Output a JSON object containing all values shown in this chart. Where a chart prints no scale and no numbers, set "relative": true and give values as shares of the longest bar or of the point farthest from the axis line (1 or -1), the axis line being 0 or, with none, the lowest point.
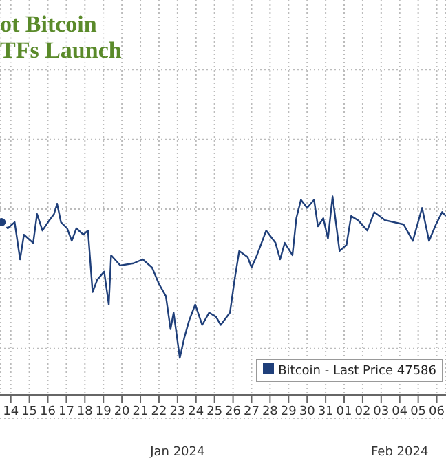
{
  "chart_data": {
    "type": "line",
    "title": "ot Bitcoin\nTFs Launch",
    "relative": true,
    "grid": true,
    "legend": "bottom right",
    "marker": "none",
    "line_style": "solid",
    "annotations": [
      "Jan 2024",
      "Feb 2024"
    ],
    "xlim": [
      "2024-01-13T10:00",
      "2024-02-06T12:00"
    ],
    "xticks": [
      {
        "value": "2024-01-14",
        "label": "14"
      },
      {
        "value": "2024-01-15",
        "label": "15"
      },
      {
        "value": "2024-01-16",
        "label": "16"
      },
      {
        "value": "2024-01-17",
        "label": "17"
      },
      {
        "value": "2024-01-18",
        "label": "18"
      },
      {
        "value": "2024-01-19",
        "label": "19"
      },
      {
        "value": "2024-01-20",
        "label": "20"
      },
      {
        "value": "2024-01-21",
        "label": "21"
      },
      {
        "value": "2024-01-22",
        "label": "22"
      },
      {
        "value": "2024-01-23",
        "label": "23"
      },
      {
        "value": "2024-01-24",
        "label": "24"
      },
      {
        "value": "2024-01-25",
        "label": "25"
      },
      {
        "value": "2024-01-26",
        "label": "26"
      },
      {
        "value": "2024-01-27",
        "label": "27"
      },
      {
        "value": "2024-01-28",
        "label": "28"
      },
      {
        "value": "2024-01-29",
        "label": "29"
      },
      {
        "value": "2024-01-30",
        "label": "30"
      },
      {
        "value": "2024-01-31",
        "label": "31"
      },
      {
        "value": "2024-02-01",
        "label": "01"
      },
      {
        "value": "2024-02-02",
        "label": "02"
      },
      {
        "value": "2024-02-03",
        "label": "03"
      },
      {
        "value": "2024-02-04",
        "label": "04"
      },
      {
        "value": "2024-02-05",
        "label": "05"
      },
      {
        "value": "2024-02-06",
        "label": "06"
      }
    ],
    "x": [
      "2024-01-13T12:00",
      "2024-01-13T20:00",
      "2024-01-14T05:00",
      "2024-01-14T12:00",
      "2024-01-14T17:00",
      "2024-01-15T05:00",
      "2024-01-15T10:00",
      "2024-01-15T17:00",
      "2024-01-16T02:00",
      "2024-01-16T08:00",
      "2024-01-16T12:00",
      "2024-01-16T17:00",
      "2024-01-17T01:00",
      "2024-01-17T07:00",
      "2024-01-17T13:00",
      "2024-01-17T22:00",
      "2024-01-18T04:00",
      "2024-01-18T10:00",
      "2024-01-18T16:00",
      "2024-01-19T01:00",
      "2024-01-19T07:00",
      "2024-01-19T10:00",
      "2024-01-19T22:00",
      "2024-01-20T15:00",
      "2024-01-21T03:00",
      "2024-01-21T15:00",
      "2024-01-22T00:00",
      "2024-01-22T09:00",
      "2024-01-22T15:00",
      "2024-01-22T19:00",
      "2024-01-23T03:00",
      "2024-01-23T09:00",
      "2024-01-23T15:00",
      "2024-01-23T23:00",
      "2024-01-24T08:00",
      "2024-01-24T17:00",
      "2024-01-25T02:00",
      "2024-01-25T08:00",
      "2024-01-25T20:00",
      "2024-01-26T02:00",
      "2024-01-26T08:00",
      "2024-01-26T19:00",
      "2024-01-27T00:00",
      "2024-01-27T07:00",
      "2024-01-27T19:00",
      "2024-01-28T07:00",
      "2024-01-28T13:00",
      "2024-01-28T19:00",
      "2024-01-29T05:00",
      "2024-01-29T10:00",
      "2024-01-29T16:00",
      "2024-01-30T00:00",
      "2024-01-30T09:00",
      "2024-01-30T14:00",
      "2024-01-30T21:00",
      "2024-01-31T03:00",
      "2024-01-31T09:00",
      "2024-01-31T18:00",
      "2024-02-01T03:00",
      "2024-02-01T09:00",
      "2024-02-01T18:00",
      "2024-02-02T06:00",
      "2024-02-02T15:00",
      "2024-02-03T05:00",
      "2024-02-04T05:00",
      "2024-02-04T17:00",
      "2024-02-05T05:00",
      "2024-02-05T14:00",
      "2024-02-05T23:00",
      "2024-02-06T07:00",
      "2024-02-06T12:00"
    ],
    "series": [
      {
        "name": "Bitcoin - Last Price 47586",
        "color": "#1f3f7a",
        "values": [
          0.87,
          0.839,
          0.87,
          0.683,
          0.807,
          0.766,
          0.911,
          0.828,
          0.88,
          0.911,
          0.963,
          0.87,
          0.839,
          0.776,
          0.839,
          0.807,
          0.828,
          0.518,
          0.58,
          0.621,
          0.455,
          0.704,
          0.652,
          0.663,
          0.683,
          0.642,
          0.559,
          0.497,
          0.331,
          0.414,
          0.186,
          0.29,
          0.373,
          0.455,
          0.352,
          0.414,
          0.393,
          0.352,
          0.414,
          0.58,
          0.725,
          0.694,
          0.642,
          0.704,
          0.828,
          0.766,
          0.683,
          0.766,
          0.704,
          0.89,
          0.983,
          0.942,
          0.983,
          0.849,
          0.89,
          0.787,
          1.0,
          0.725,
          0.756,
          0.901,
          0.88,
          0.828,
          0.921,
          0.88,
          0.859,
          0.776,
          0.942,
          0.776,
          0.859,
          0.921,
          0.901
        ]
      }
    ]
  }
}
